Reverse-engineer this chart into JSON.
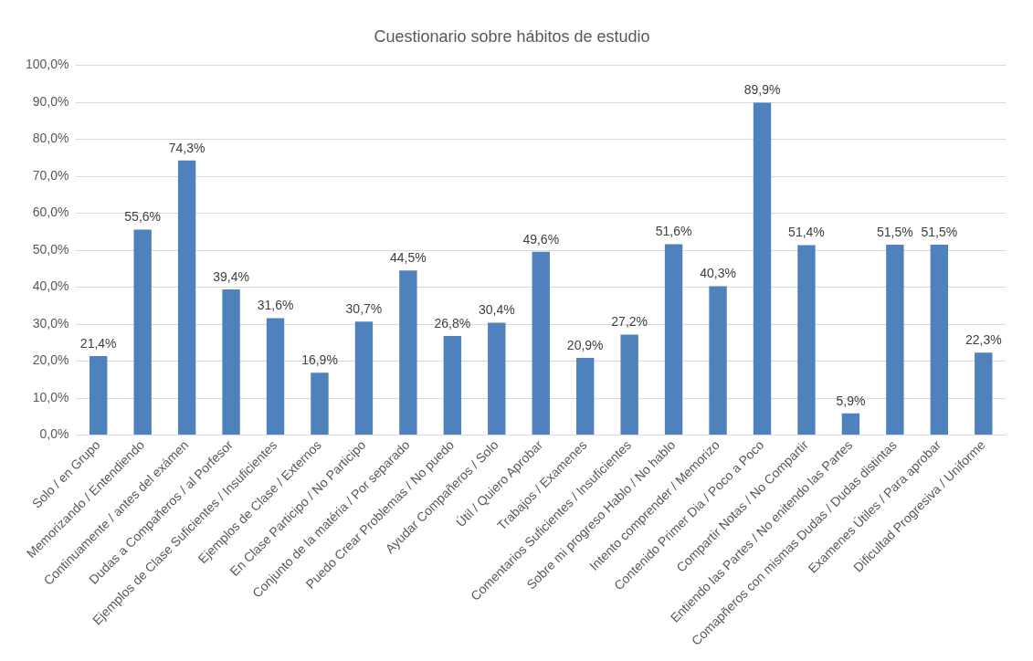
{
  "chart_data": {
    "type": "bar",
    "title": "Cuestionario sobre hábitos de estudio",
    "categories": [
      "Solo / en Grupo",
      "Memorizando / Entendiendo",
      "Continuamente / antes del exámen",
      "Dudas a Compañeros / al Porfesor",
      "Ejemplos de Clase Suficientes / Insuficientes",
      "Ejemplos de Clase / Externos",
      "En Clase Participo / No Participo",
      "Conjunto de la matéria / Por separado",
      "Puedo Crear Problemas / No puedo",
      "Ayudar Compañeros / Solo",
      "Útil / Quiero Aprobar",
      "Trabajos / Examenes",
      "Comentarios Suficientes / Insuficientes",
      "Sobre mi progreso Hablo / No hablo",
      "Intento comprender / Memorizo",
      "Contenido Primer Dia / Poco a Poco",
      "Compartir Notas / No Compartir",
      "Entiendo las Partes / No enitendo las Partes",
      "Comapñeros con mismas Dudas / Dudas distintas",
      "Examenes Útiles / Para aprobar",
      "Dificultad Progresiva / Uniforme"
    ],
    "values": [
      21.4,
      55.6,
      74.3,
      39.4,
      31.6,
      16.9,
      30.7,
      44.5,
      26.8,
      30.4,
      49.6,
      20.9,
      27.2,
      51.6,
      40.3,
      89.9,
      51.4,
      5.9,
      51.5,
      51.5,
      22.3
    ],
    "value_labels": [
      "21,4%",
      "55,6%",
      "74,3%",
      "39,4%",
      "31,6%",
      "16,9%",
      "30,7%",
      "44,5%",
      "26,8%",
      "30,4%",
      "49,6%",
      "20,9%",
      "27,2%",
      "51,6%",
      "40,3%",
      "89,9%",
      "51,4%",
      "5,9%",
      "51,5%",
      "51,5%",
      "22,3%"
    ],
    "color": "#4f81bd",
    "ylim": [
      0,
      100
    ],
    "yticks": [
      {
        "value": 0,
        "label": "0,0%"
      },
      {
        "value": 10,
        "label": "10,0%"
      },
      {
        "value": 20,
        "label": "20,0%"
      },
      {
        "value": 30,
        "label": "30,0%"
      },
      {
        "value": 40,
        "label": "40,0%"
      },
      {
        "value": 50,
        "label": "50,0%"
      },
      {
        "value": 60,
        "label": "60,0%"
      },
      {
        "value": 70,
        "label": "70,0%"
      },
      {
        "value": 80,
        "label": "80,0%"
      },
      {
        "value": 90,
        "label": "90,0%"
      },
      {
        "value": 100,
        "label": "100,0%"
      }
    ],
    "grid": "y",
    "legend": false
  }
}
